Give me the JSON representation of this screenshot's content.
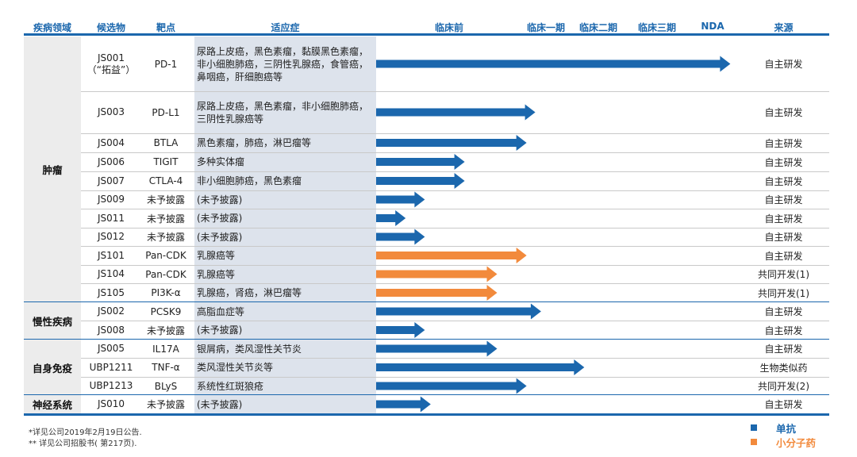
{
  "chart_data": {
    "type": "bar",
    "headers": {
      "area": "疾病领域",
      "candidate": "候选物",
      "target": "靶点",
      "indication": "适应症",
      "stages": [
        "临床前",
        "临床一期",
        "临床二期",
        "临床三期",
        "NDA"
      ],
      "source": "来源"
    },
    "groups": [
      {
        "name": "肿瘤",
        "rows": [
          0,
          1,
          2,
          3,
          4,
          5,
          6,
          7,
          8,
          9,
          10
        ]
      },
      {
        "name": "慢性疾病",
        "rows": [
          11,
          12
        ]
      },
      {
        "name": "自身免疫",
        "rows": [
          13,
          14,
          15
        ]
      },
      {
        "name": "神经系统",
        "rows": [
          16
        ]
      }
    ],
    "rows": [
      {
        "candidate": "JS001\n（“拓益”）",
        "target": "PD-1",
        "indication": "尿路上皮癌，黑色素瘤，黏膜黑色素瘤，非小细胞肺癌，三阴性乳腺癌，食管癌，鼻咽癌，肝细胞癌等",
        "progress": 4.85,
        "type": "单抗",
        "source": "自主研发"
      },
      {
        "candidate": "JS003",
        "target": "PD-L1",
        "indication": "尿路上皮癌，黑色素瘤，非小细胞肺癌，三阴性乳腺癌等",
        "progress": 1.2,
        "type": "单抗",
        "source": "自主研发"
      },
      {
        "candidate": "JS004",
        "target": "BTLA",
        "indication": "黑色素瘤，肺癌，淋巴瘤等",
        "progress": 1.05,
        "type": "单抗",
        "source": "自主研发"
      },
      {
        "candidate": "JS006",
        "target": "TIGIT",
        "indication": "多种实体瘤",
        "progress": 0.6,
        "type": "单抗",
        "source": "自主研发"
      },
      {
        "candidate": "JS007",
        "target": "CTLA-4",
        "indication": "非小细胞肺癌，黑色素瘤",
        "progress": 0.6,
        "type": "单抗",
        "source": "自主研发"
      },
      {
        "candidate": "JS009",
        "target": "未予披露",
        "indication": "(未予披露)",
        "progress": 0.33,
        "type": "单抗",
        "source": "自主研发"
      },
      {
        "candidate": "JS011",
        "target": "未予披露",
        "indication": "(未予披露)",
        "progress": 0.2,
        "type": "单抗",
        "source": "自主研发"
      },
      {
        "candidate": "JS012",
        "target": "未予披露",
        "indication": "(未予披露)",
        "progress": 0.33,
        "type": "单抗",
        "source": "自主研发"
      },
      {
        "candidate": "JS101",
        "target": "Pan-CDK",
        "indication": "乳腺癌等",
        "progress": 1.05,
        "type": "小分子药",
        "source": "自主研发"
      },
      {
        "candidate": "JS104",
        "target": "Pan-CDK",
        "indication": "乳腺癌等",
        "progress": 0.82,
        "type": "小分子药",
        "source": "共同开发(1)"
      },
      {
        "candidate": "JS105",
        "target": "PI3K-α",
        "indication": "乳腺癌，肾癌，淋巴瘤等",
        "progress": 0.82,
        "type": "小分子药",
        "source": "共同开发(1)"
      },
      {
        "candidate": "JS002",
        "target": "PCSK9",
        "indication": "高脂血症等",
        "progress": 1.3,
        "type": "单抗",
        "source": "自主研发"
      },
      {
        "candidate": "JS008",
        "target": "未予披露",
        "indication": "(未予披露)",
        "progress": 0.33,
        "type": "单抗",
        "source": "自主研发"
      },
      {
        "candidate": "JS005",
        "target": "IL17A",
        "indication": "银屑病，类风湿性关节炎",
        "progress": 0.82,
        "type": "单抗",
        "source": "自主研发"
      },
      {
        "candidate": "UBP1211",
        "target": "TNF-α",
        "indication": "类风湿性关节炎等",
        "progress": 2.05,
        "type": "单抗",
        "source": "生物类似药"
      },
      {
        "candidate": "UBP1213",
        "target": "BLyS",
        "indication": "系统性红斑狼疮",
        "progress": 1.05,
        "type": "单抗",
        "source": "共同开发(2)"
      },
      {
        "candidate": "JS010",
        "target": "未予披露",
        "indication": "(未予披露)",
        "progress": 0.37,
        "type": "单抗",
        "source": "自主研发"
      }
    ],
    "legend": [
      {
        "name": "单抗",
        "color": "#1b67ad"
      },
      {
        "name": "小分子药",
        "color": "#f28a3c"
      }
    ],
    "legend_position": "bottom-right"
  },
  "footnotes": [
    "*详见公司2019年2月19日公告.",
    "** 详见公司招股书( 第217页)."
  ]
}
